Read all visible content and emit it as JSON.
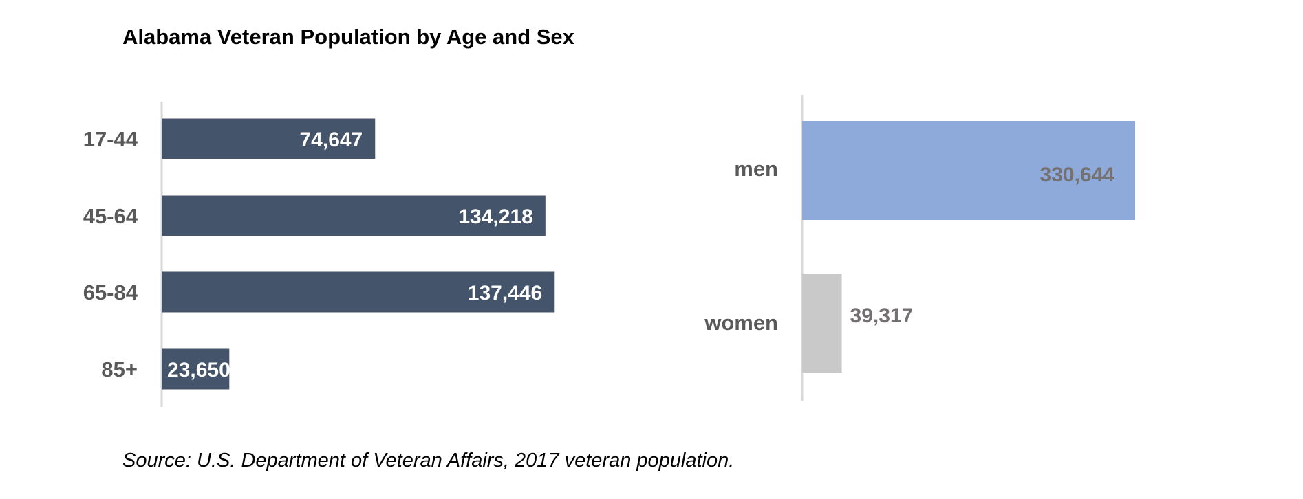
{
  "title": "Alabama Veteran Population by Age and Sex",
  "source": "Source: U.S. Department of Veteran Affairs, 2017 veteran population.",
  "chart_data": [
    {
      "type": "bar",
      "orientation": "horizontal",
      "categories": [
        "17-44",
        "45-64",
        "65-84",
        "85+"
      ],
      "values": [
        74647,
        134218,
        137446,
        23650
      ],
      "data_labels": [
        "74,647",
        "134,218",
        "137,446",
        "23,650"
      ],
      "xlim": [
        0,
        160000
      ],
      "grid": false,
      "colors": {
        "bar": "#44546a",
        "label": "#ffffff",
        "axis": "#d9d9d9"
      }
    },
    {
      "type": "bar",
      "orientation": "horizontal",
      "categories": [
        "men",
        "women"
      ],
      "values": [
        330644,
        39317
      ],
      "data_labels": [
        "330,644",
        "39,317"
      ],
      "xlim": [
        0,
        500000
      ],
      "grid": false,
      "colors": {
        "bars": [
          "#8eaadb",
          "#c9c9c9"
        ],
        "label": "#767171",
        "axis": "#d9d9d9"
      }
    }
  ]
}
